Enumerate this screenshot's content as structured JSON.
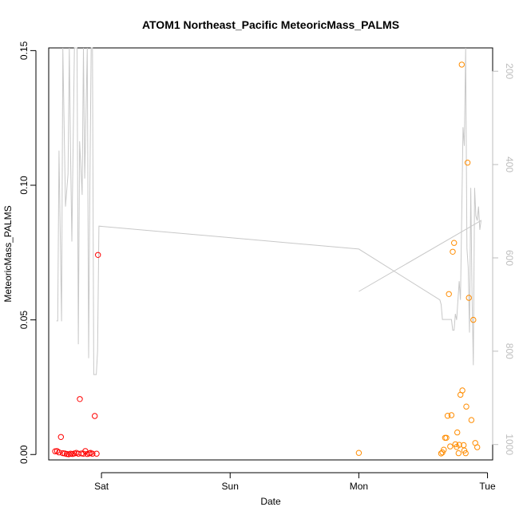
{
  "chart_data": {
    "type": "scatter",
    "title": "ATOM1 Northeast_Pacific MeteoricMass_PALMS",
    "xlabel": "Date",
    "ylabel": "MeteoricMass_PALMS",
    "x_ticks": [
      "Sat",
      "Sun",
      "Mon",
      "Tue"
    ],
    "x_tick_days": [
      1,
      2,
      3,
      4
    ],
    "xlim_days": [
      0.59,
      4.04
    ],
    "ylim": [
      -0.002,
      0.151
    ],
    "y_ticks": [
      0.0,
      0.05,
      0.1,
      0.15
    ],
    "y_tick_labels": [
      "0.00",
      "0.05",
      "0.10",
      "0.15"
    ],
    "secondary_axis": {
      "side": "right",
      "inverted": true,
      "color": "#bdbdbd",
      "ylim": [
        1033,
        150
      ],
      "ticks": [
        200,
        400,
        600,
        800,
        1000
      ],
      "tick_labels": [
        "200",
        "400",
        "600",
        "800",
        "1000"
      ]
    },
    "grid": false,
    "legend": "none",
    "series": [
      {
        "color": "#ff0000",
        "marker": "open-circle",
        "points": [
          [
            0.64,
            0.0012
          ],
          [
            0.655,
            0.0013
          ],
          [
            0.67,
            0.0008
          ],
          [
            0.685,
            0.0065
          ],
          [
            0.7,
            0.0005
          ],
          [
            0.715,
            0.0004
          ],
          [
            0.73,
            0.0002
          ],
          [
            0.745,
            0.0001
          ],
          [
            0.76,
            0.0003
          ],
          [
            0.775,
            0.0002
          ],
          [
            0.79,
            0.0004
          ],
          [
            0.805,
            0.0006
          ],
          [
            0.82,
            0.0003
          ],
          [
            0.832,
            0.0206
          ],
          [
            0.845,
            0.0004
          ],
          [
            0.86,
            0.0003
          ],
          [
            0.875,
            0.0013
          ],
          [
            0.89,
            0.0002
          ],
          [
            0.905,
            0.0004
          ],
          [
            0.915,
            0.0006
          ],
          [
            0.93,
            0.0003
          ],
          [
            0.948,
            0.0143
          ],
          [
            0.962,
            0.0003
          ],
          [
            0.973,
            0.0741
          ]
        ]
      },
      {
        "color": "#ff8c00",
        "marker": "open-circle",
        "points": [
          [
            3.0,
            0.0006
          ],
          [
            3.64,
            0.0004
          ],
          [
            3.65,
            0.0008
          ],
          [
            3.66,
            0.0018
          ],
          [
            3.67,
            0.0062
          ],
          [
            3.68,
            0.0062
          ],
          [
            3.69,
            0.0144
          ],
          [
            3.7,
            0.0596
          ],
          [
            3.71,
            0.003
          ],
          [
            3.72,
            0.0146
          ],
          [
            3.73,
            0.0753
          ],
          [
            3.74,
            0.0786
          ],
          [
            3.75,
            0.0038
          ],
          [
            3.76,
            0.0028
          ],
          [
            3.765,
            0.0082
          ],
          [
            3.775,
            0.0005
          ],
          [
            3.78,
            0.0036
          ],
          [
            3.79,
            0.0222
          ],
          [
            3.8,
            0.1448
          ],
          [
            3.805,
            0.0238
          ],
          [
            3.815,
            0.0035
          ],
          [
            3.82,
            0.0015
          ],
          [
            3.83,
            0.0005
          ],
          [
            3.835,
            0.0178
          ],
          [
            3.845,
            0.1084
          ],
          [
            3.855,
            0.0582
          ],
          [
            3.875,
            0.0128
          ],
          [
            3.89,
            0.05
          ],
          [
            3.905,
            0.0043
          ],
          [
            3.92,
            0.0027
          ]
        ]
      }
    ],
    "altitude_series": {
      "color": "#c8c8c8",
      "axis": "secondary",
      "points": [
        [
          0.65,
          735
        ],
        [
          0.66,
          735
        ],
        [
          0.67,
          370
        ],
        [
          0.69,
          736
        ],
        [
          0.7,
          45
        ],
        [
          0.72,
          490
        ],
        [
          0.74,
          420
        ],
        [
          0.75,
          45
        ],
        [
          0.76,
          380
        ],
        [
          0.77,
          565
        ],
        [
          0.79,
          45
        ],
        [
          0.81,
          60
        ],
        [
          0.82,
          785
        ],
        [
          0.83,
          350
        ],
        [
          0.85,
          465
        ],
        [
          0.86,
          45
        ],
        [
          0.87,
          430
        ],
        [
          0.89,
          45
        ],
        [
          0.9,
          815
        ],
        [
          0.91,
          440
        ],
        [
          0.92,
          45
        ],
        [
          0.93,
          45
        ],
        [
          0.94,
          850
        ],
        [
          0.96,
          850
        ],
        [
          0.97,
          800
        ],
        [
          0.98,
          532
        ],
        [
          3.0,
          581
        ],
        [
          3.63,
          690
        ],
        [
          3.64,
          700
        ],
        [
          3.65,
          732
        ],
        [
          3.72,
          732
        ],
        [
          3.73,
          755
        ],
        [
          3.74,
          755
        ],
        [
          3.75,
          720
        ],
        [
          3.76,
          733
        ],
        [
          3.78,
          650
        ],
        [
          3.79,
          690
        ],
        [
          3.81,
          320
        ],
        [
          3.82,
          360
        ],
        [
          3.83,
          45
        ],
        [
          3.84,
          580
        ],
        [
          3.85,
          620
        ],
        [
          3.86,
          760
        ],
        [
          3.87,
          450
        ],
        [
          3.88,
          680
        ],
        [
          3.89,
          830
        ],
        [
          3.9,
          450
        ],
        [
          3.91,
          510
        ],
        [
          3.92,
          520
        ],
        [
          3.93,
          490
        ],
        [
          3.94,
          540
        ],
        [
          3.95,
          520
        ],
        [
          3.0,
          672
        ]
      ]
    }
  }
}
